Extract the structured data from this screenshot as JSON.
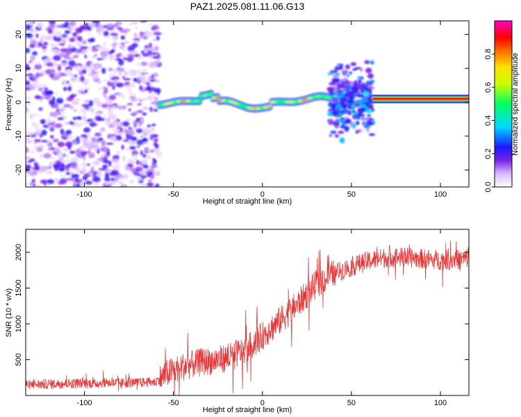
{
  "title": "PAZ1.2025.081.11.06.G13",
  "chart_data": [
    {
      "type": "heatmap",
      "title": "PAZ1.2025.081.11.06.G13",
      "xlabel": "Height of straight line (km)",
      "ylabel": "Frequency (Hz)",
      "xlim": [
        -133,
        116
      ],
      "ylim": [
        -25,
        24
      ],
      "xticks": [
        -100,
        -50,
        0,
        50,
        100
      ],
      "yticks": [
        -20,
        -10,
        0,
        10,
        20
      ],
      "colorbar": {
        "label": "Normalized spectral amplitude",
        "range": [
          0,
          1
        ],
        "ticks": [
          0.0,
          0.2,
          0.4,
          0.6,
          0.8
        ]
      },
      "features": [
        {
          "x_range": [
            -133,
            -58
          ],
          "freq_range": [
            -25,
            24
          ],
          "amplitude": "low, scattered noise"
        },
        {
          "x_range": [
            -58,
            38
          ],
          "freq_range": [
            -2.5,
            3
          ],
          "amplitude": "0.4-0.9, narrow band near 0 Hz"
        },
        {
          "x_range": [
            38,
            62
          ],
          "freq_range": [
            -15,
            12
          ],
          "amplitude": "0.2-0.4, scattered patch"
        },
        {
          "x_range": [
            62,
            116
          ],
          "freq_range": [
            0,
            2
          ],
          "amplitude": "~0.8, narrow band near 1 Hz"
        }
      ]
    },
    {
      "type": "line",
      "xlabel": "Height of straight line (km)",
      "ylabel": "SNR (10 * v/v)",
      "xlim": [
        -133,
        116
      ],
      "ylim": [
        0,
        2320
      ],
      "xticks": [
        -100,
        -50,
        0,
        50,
        100
      ],
      "yticks": [
        500,
        1000,
        1500,
        2000
      ],
      "color": "#ee3333",
      "series": [
        {
          "x": [
            -133,
            -120,
            -100,
            -80,
            -70,
            -60,
            -55,
            -50,
            -45,
            -40,
            -30,
            -20,
            -10,
            0,
            10,
            20,
            30,
            40,
            50,
            60,
            70,
            80,
            90,
            100,
            110,
            116
          ],
          "values": [
            150,
            160,
            170,
            175,
            180,
            190,
            290,
            350,
            400,
            430,
            480,
            520,
            630,
            830,
            1050,
            1280,
            1550,
            1700,
            1800,
            1880,
            1930,
            1930,
            1910,
            1890,
            1900,
            1920
          ]
        }
      ]
    }
  ]
}
